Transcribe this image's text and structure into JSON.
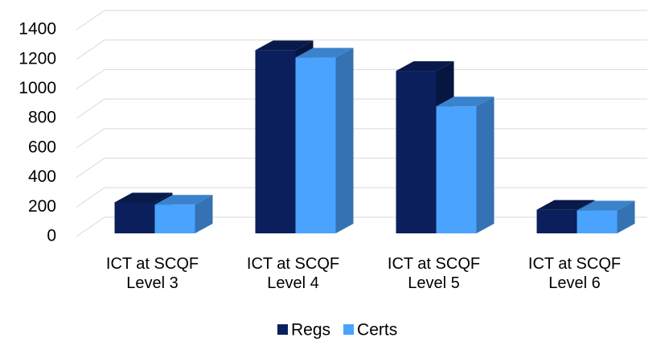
{
  "chart_data": {
    "type": "bar3d",
    "categories": [
      "ICT at SCQF Level 3",
      "ICT at SCQF Level 4",
      "ICT at SCQF Level 5",
      "ICT at SCQF Level 6"
    ],
    "series": [
      {
        "name": "Regs",
        "color": "#0a1f5c",
        "values": [
          210,
          1240,
          1100,
          160
        ]
      },
      {
        "name": "Certs",
        "color": "#4aa3ff",
        "values": [
          195,
          1190,
          860,
          155
        ]
      }
    ],
    "ylim": [
      0,
      1400
    ],
    "yticks": [
      0,
      200,
      400,
      600,
      800,
      1000,
      1200,
      1400
    ],
    "grid": true,
    "legend": "bottom"
  }
}
